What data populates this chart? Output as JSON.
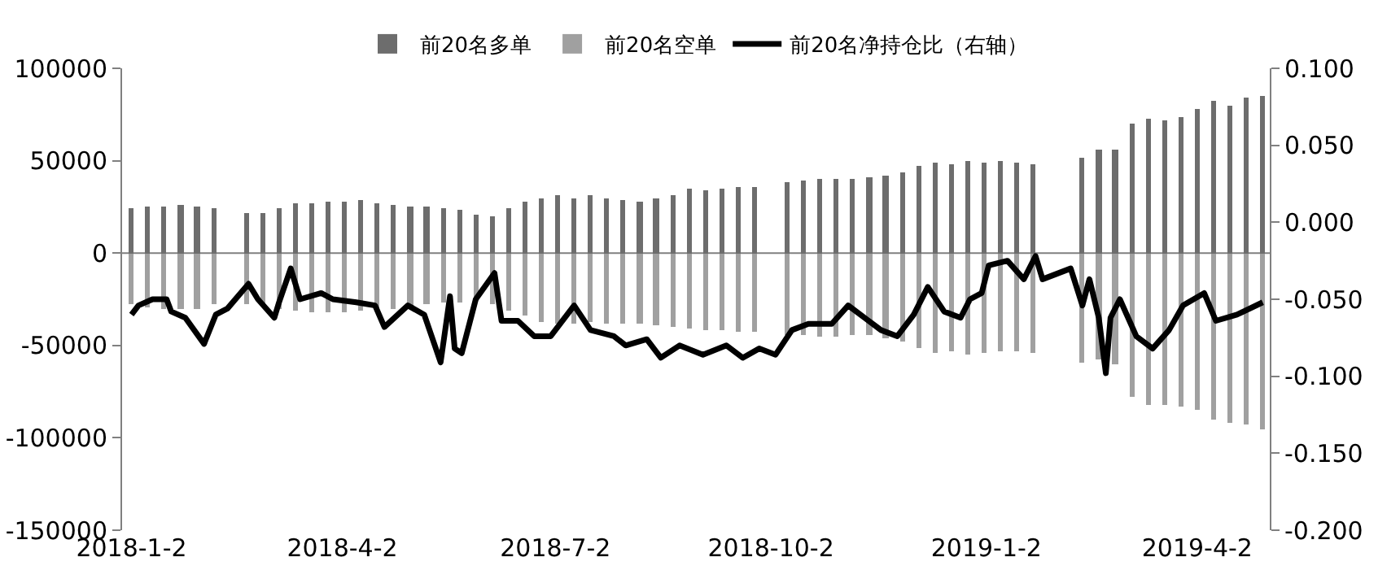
{
  "chart_data": {
    "type": "bar",
    "x": [
      "2018-01-02",
      "2018-01-09",
      "2018-01-16",
      "2018-01-23",
      "2018-01-30",
      "2018-02-06",
      "2018-02-20",
      "2018-02-27",
      "2018-03-06",
      "2018-03-13",
      "2018-03-20",
      "2018-03-27",
      "2018-04-03",
      "2018-04-10",
      "2018-04-17",
      "2018-04-24",
      "2018-05-01",
      "2018-05-08",
      "2018-05-15",
      "2018-05-22",
      "2018-05-29",
      "2018-06-05",
      "2018-06-12",
      "2018-06-19",
      "2018-06-26",
      "2018-07-03",
      "2018-07-10",
      "2018-07-17",
      "2018-07-24",
      "2018-07-31",
      "2018-08-07",
      "2018-08-14",
      "2018-08-21",
      "2018-08-28",
      "2018-09-04",
      "2018-09-11",
      "2018-09-18",
      "2018-09-25",
      "2018-10-09",
      "2018-10-16",
      "2018-10-23",
      "2018-10-30",
      "2018-11-06",
      "2018-11-13",
      "2018-11-20",
      "2018-11-27",
      "2018-12-04",
      "2018-12-11",
      "2018-12-18",
      "2018-12-25",
      "2019-01-01",
      "2019-01-08",
      "2019-01-15",
      "2019-01-22",
      "2019-02-12",
      "2019-02-19",
      "2019-02-26",
      "2019-03-05",
      "2019-03-12",
      "2019-03-19",
      "2019-03-26",
      "2019-04-02",
      "2019-04-09",
      "2019-04-16",
      "2019-04-23",
      "2019-04-30"
    ],
    "series": [
      {
        "name": "前20名多单",
        "color": "#6d6d6d",
        "values": [
          24000,
          25000,
          25000,
          26000,
          25000,
          24000,
          22000,
          22000,
          24000,
          27000,
          27000,
          28000,
          28000,
          29000,
          27000,
          26000,
          25000,
          25000,
          24000,
          23000,
          21000,
          20000,
          24000,
          28000,
          30000,
          31000,
          30000,
          31000,
          30000,
          29000,
          28000,
          30000,
          31000,
          35000,
          34000,
          35000,
          36000,
          36000,
          38000,
          39000,
          40000,
          40000,
          40000,
          41000,
          42000,
          44000,
          47000,
          49000,
          48000,
          50000,
          49000,
          50000,
          49000,
          48000,
          52000,
          56000,
          56000,
          70000,
          73000,
          72000,
          74000,
          78000,
          82000,
          80000,
          84000,
          85000
        ]
      },
      {
        "name": "前20名空单",
        "color": "#a0a0a0",
        "values": [
          -28000,
          -29000,
          -30000,
          -30000,
          -30000,
          -28000,
          -28000,
          -28000,
          -30000,
          -31000,
          -32000,
          -32000,
          -32000,
          -31000,
          -30000,
          -30000,
          -29000,
          -28000,
          -27000,
          -27000,
          -26000,
          -28000,
          -31000,
          -34000,
          -37000,
          -38000,
          -38000,
          -37000,
          -38000,
          -38000,
          -38000,
          -39000,
          -40000,
          -41000,
          -42000,
          -42000,
          -43000,
          -43000,
          -44000,
          -44000,
          -45000,
          -45000,
          -44000,
          -44000,
          -46000,
          -48000,
          -51000,
          -54000,
          -53000,
          -55000,
          -54000,
          -53000,
          -53000,
          -54000,
          -59000,
          -58000,
          -60000,
          -78000,
          -82000,
          -82000,
          -83000,
          -85000,
          -90000,
          -92000,
          -93000,
          -95000
        ]
      },
      {
        "name": "前20名净持仓比（右轴）",
        "type": "line",
        "axis": "y2",
        "color": "#000000",
        "x": [
          "2018-01-02",
          "2018-01-05",
          "2018-01-11",
          "2018-01-17",
          "2018-01-19",
          "2018-01-25",
          "2018-02-02",
          "2018-02-07",
          "2018-02-12",
          "2018-02-21",
          "2018-02-25",
          "2018-03-04",
          "2018-03-06",
          "2018-03-11",
          "2018-03-15",
          "2018-03-24",
          "2018-03-29",
          "2018-04-08",
          "2018-04-16",
          "2018-04-20",
          "2018-04-30",
          "2018-05-07",
          "2018-05-14",
          "2018-05-18",
          "2018-05-20",
          "2018-05-23",
          "2018-05-29",
          "2018-06-06",
          "2018-06-09",
          "2018-06-16",
          "2018-06-23",
          "2018-06-30",
          "2018-07-10",
          "2018-07-17",
          "2018-07-27",
          "2018-08-01",
          "2018-08-10",
          "2018-08-16",
          "2018-08-24",
          "2018-09-03",
          "2018-09-13",
          "2018-09-20",
          "2018-09-27",
          "2018-10-04",
          "2018-10-11",
          "2018-10-18",
          "2018-10-28",
          "2018-11-04",
          "2018-11-11",
          "2018-11-18",
          "2018-11-25",
          "2018-12-02",
          "2018-12-08",
          "2018-12-15",
          "2018-12-22",
          "2018-12-26",
          "2018-12-31",
          "2019-01-03",
          "2019-01-11",
          "2019-01-18",
          "2019-01-23",
          "2019-01-26",
          "2019-02-07",
          "2019-02-12",
          "2019-02-15",
          "2019-02-19",
          "2019-02-22",
          "2019-02-24",
          "2019-02-28",
          "2019-03-07",
          "2019-03-14",
          "2019-03-21",
          "2019-03-27",
          "2019-04-05",
          "2019-04-10",
          "2019-04-19",
          "2019-04-30"
        ],
        "values": [
          -0.06,
          -0.054,
          -0.05,
          -0.05,
          -0.058,
          -0.062,
          -0.079,
          -0.06,
          -0.056,
          -0.04,
          -0.05,
          -0.062,
          -0.052,
          -0.03,
          -0.05,
          -0.046,
          -0.05,
          -0.052,
          -0.054,
          -0.068,
          -0.054,
          -0.06,
          -0.091,
          -0.048,
          -0.082,
          -0.085,
          -0.05,
          -0.033,
          -0.064,
          -0.064,
          -0.074,
          -0.074,
          -0.054,
          -0.07,
          -0.074,
          -0.08,
          -0.076,
          -0.088,
          -0.08,
          -0.086,
          -0.08,
          -0.088,
          -0.082,
          -0.086,
          -0.07,
          -0.066,
          -0.066,
          -0.054,
          -0.062,
          -0.07,
          -0.074,
          -0.06,
          -0.042,
          -0.058,
          -0.062,
          -0.05,
          -0.046,
          -0.028,
          -0.025,
          -0.037,
          -0.022,
          -0.037,
          -0.03,
          -0.054,
          -0.037,
          -0.062,
          -0.098,
          -0.062,
          -0.05,
          -0.074,
          -0.082,
          -0.07,
          -0.054,
          -0.046,
          -0.064,
          -0.06,
          -0.052
        ]
      }
    ],
    "xlim": [
      "2017-12-29",
      "2019-05-03"
    ],
    "xticks": [
      {
        "value": "2018-01-02",
        "label": "2018-1-2"
      },
      {
        "value": "2018-04-02",
        "label": "2018-4-2"
      },
      {
        "value": "2018-07-02",
        "label": "2018-7-2"
      },
      {
        "value": "2018-10-02",
        "label": "2018-10-2"
      },
      {
        "value": "2019-01-02",
        "label": "2019-1-2"
      },
      {
        "value": "2019-04-02",
        "label": "2019-4-2"
      }
    ],
    "ylim": [
      -150000,
      100000
    ],
    "yticks": [
      -150000,
      -100000,
      -50000,
      0,
      50000,
      100000
    ],
    "y2lim": [
      -0.2,
      0.1
    ],
    "y2ticks": [
      {
        "value": -0.2,
        "label": "-0.200"
      },
      {
        "value": -0.15,
        "label": "-0.150"
      },
      {
        "value": -0.1,
        "label": "-0.100"
      },
      {
        "value": -0.05,
        "label": "-0.050"
      },
      {
        "value": 0,
        "label": "0.000"
      },
      {
        "value": 0.05,
        "label": "0.050"
      },
      {
        "value": 0.1,
        "label": "0.100"
      }
    ],
    "grid": false,
    "stacked": true,
    "ref_lines": [
      {
        "axis": "y",
        "value": 0,
        "color": "#808080"
      }
    ],
    "legend": "top"
  }
}
